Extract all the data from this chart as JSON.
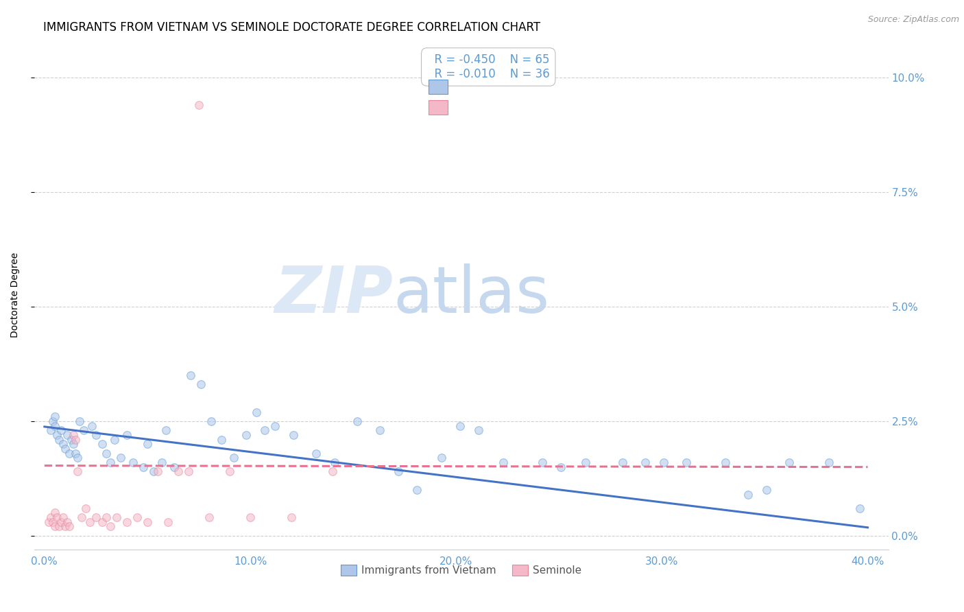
{
  "title": "IMMIGRANTS FROM VIETNAM VS SEMINOLE DOCTORATE DEGREE CORRELATION CHART",
  "source": "Source: ZipAtlas.com",
  "ylabel": "Doctorate Degree",
  "ytick_vals": [
    0.0,
    2.5,
    5.0,
    7.5,
    10.0
  ],
  "ytick_labels": [
    "0.0%",
    "2.5%",
    "5.0%",
    "7.5%",
    "10.0%"
  ],
  "xtick_vals": [
    0.0,
    10.0,
    20.0,
    30.0,
    40.0
  ],
  "xtick_labels": [
    "0.0%",
    "10.0%",
    "20.0%",
    "30.0%",
    "40.0%"
  ],
  "xlim": [
    -0.5,
    41.0
  ],
  "ylim": [
    -0.3,
    10.8
  ],
  "legend_blue_r": "R = -0.450",
  "legend_blue_n": "N = 65",
  "legend_pink_r": "R = -0.010",
  "legend_pink_n": "N = 36",
  "legend_label_blue": "Immigrants from Vietnam",
  "legend_label_pink": "Seminole",
  "blue_fill": "#aec6e8",
  "pink_fill": "#f4b8c8",
  "blue_edge": "#5b9bd5",
  "pink_edge": "#e8849a",
  "blue_line": "#4472c4",
  "pink_line": "#e87090",
  "tick_color": "#5b9bd5",
  "blue_scatter": [
    [
      0.3,
      2.3
    ],
    [
      0.4,
      2.5
    ],
    [
      0.5,
      2.4
    ],
    [
      0.5,
      2.6
    ],
    [
      0.6,
      2.2
    ],
    [
      0.7,
      2.1
    ],
    [
      0.8,
      2.3
    ],
    [
      0.9,
      2.0
    ],
    [
      1.0,
      1.9
    ],
    [
      1.1,
      2.2
    ],
    [
      1.2,
      1.8
    ],
    [
      1.3,
      2.1
    ],
    [
      1.4,
      2.0
    ],
    [
      1.5,
      1.8
    ],
    [
      1.6,
      1.7
    ],
    [
      1.7,
      2.5
    ],
    [
      1.9,
      2.3
    ],
    [
      2.3,
      2.4
    ],
    [
      2.5,
      2.2
    ],
    [
      2.8,
      2.0
    ],
    [
      3.0,
      1.8
    ],
    [
      3.2,
      1.6
    ],
    [
      3.4,
      2.1
    ],
    [
      3.7,
      1.7
    ],
    [
      4.0,
      2.2
    ],
    [
      4.3,
      1.6
    ],
    [
      4.8,
      1.5
    ],
    [
      5.0,
      2.0
    ],
    [
      5.3,
      1.4
    ],
    [
      5.7,
      1.6
    ],
    [
      5.9,
      2.3
    ],
    [
      6.3,
      1.5
    ],
    [
      7.1,
      3.5
    ],
    [
      7.6,
      3.3
    ],
    [
      8.1,
      2.5
    ],
    [
      8.6,
      2.1
    ],
    [
      9.2,
      1.7
    ],
    [
      9.8,
      2.2
    ],
    [
      10.3,
      2.7
    ],
    [
      10.7,
      2.3
    ],
    [
      11.2,
      2.4
    ],
    [
      12.1,
      2.2
    ],
    [
      13.2,
      1.8
    ],
    [
      14.1,
      1.6
    ],
    [
      15.2,
      2.5
    ],
    [
      16.3,
      2.3
    ],
    [
      17.2,
      1.4
    ],
    [
      18.1,
      1.0
    ],
    [
      19.3,
      1.7
    ],
    [
      20.2,
      2.4
    ],
    [
      21.1,
      2.3
    ],
    [
      22.3,
      1.6
    ],
    [
      24.2,
      1.6
    ],
    [
      25.1,
      1.5
    ],
    [
      26.3,
      1.6
    ],
    [
      28.1,
      1.6
    ],
    [
      29.2,
      1.6
    ],
    [
      30.1,
      1.6
    ],
    [
      31.2,
      1.6
    ],
    [
      33.1,
      1.6
    ],
    [
      34.2,
      0.9
    ],
    [
      35.1,
      1.0
    ],
    [
      36.2,
      1.6
    ],
    [
      38.1,
      1.6
    ],
    [
      39.6,
      0.6
    ]
  ],
  "pink_scatter": [
    [
      0.2,
      0.3
    ],
    [
      0.3,
      0.4
    ],
    [
      0.4,
      0.3
    ],
    [
      0.5,
      0.2
    ],
    [
      0.5,
      0.5
    ],
    [
      0.6,
      0.4
    ],
    [
      0.7,
      0.2
    ],
    [
      0.8,
      0.3
    ],
    [
      0.9,
      0.4
    ],
    [
      1.0,
      0.2
    ],
    [
      1.1,
      0.3
    ],
    [
      1.2,
      0.2
    ],
    [
      1.4,
      2.2
    ],
    [
      1.5,
      2.1
    ],
    [
      1.6,
      1.4
    ],
    [
      1.8,
      0.4
    ],
    [
      2.0,
      0.6
    ],
    [
      2.2,
      0.3
    ],
    [
      2.5,
      0.4
    ],
    [
      2.8,
      0.3
    ],
    [
      3.0,
      0.4
    ],
    [
      3.2,
      0.2
    ],
    [
      3.5,
      0.4
    ],
    [
      4.0,
      0.3
    ],
    [
      4.5,
      0.4
    ],
    [
      5.0,
      0.3
    ],
    [
      5.5,
      1.4
    ],
    [
      6.0,
      0.3
    ],
    [
      6.5,
      1.4
    ],
    [
      7.0,
      1.4
    ],
    [
      7.5,
      9.4
    ],
    [
      8.0,
      0.4
    ],
    [
      9.0,
      1.4
    ],
    [
      10.0,
      0.4
    ],
    [
      12.0,
      0.4
    ],
    [
      14.0,
      1.4
    ]
  ],
  "blue_trend_x": [
    0.0,
    40.0
  ],
  "blue_trend_y": [
    2.38,
    0.18
  ],
  "pink_trend_x": [
    0.0,
    40.0
  ],
  "pink_trend_y": [
    1.53,
    1.5
  ],
  "watermark_zip": "ZIP",
  "watermark_atlas": "atlas",
  "background_color": "#ffffff",
  "grid_color": "#d0d0d0",
  "title_fontsize": 12,
  "axis_label_fontsize": 10,
  "tick_fontsize": 11,
  "scatter_size": 70,
  "scatter_alpha": 0.55,
  "line_width": 2.2
}
